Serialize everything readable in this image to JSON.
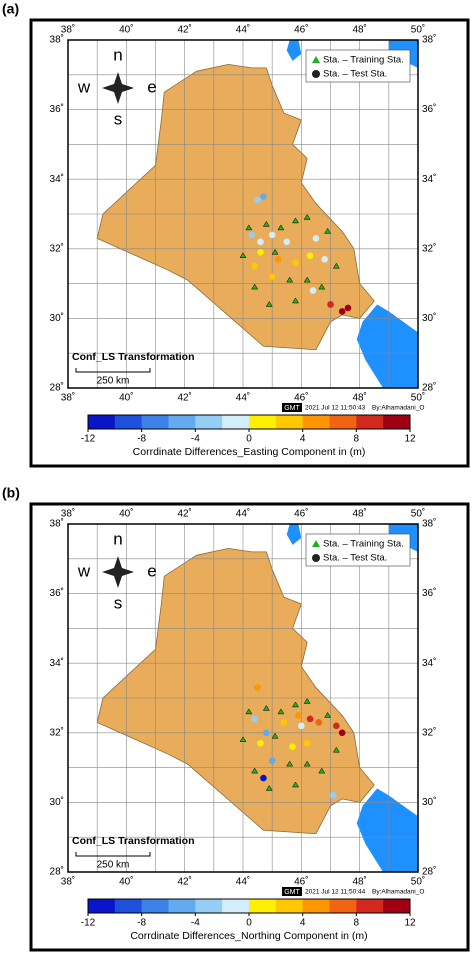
{
  "panels": [
    {
      "label": "(a)",
      "map": {
        "xlim": [
          38,
          50
        ],
        "ylim": [
          28,
          38
        ],
        "xticks": [
          {
            "value": 38,
            "label": "38˚"
          },
          {
            "value": 40,
            "label": "40˚"
          },
          {
            "value": 42,
            "label": "42˚"
          },
          {
            "value": 44,
            "label": "44˚"
          },
          {
            "value": 46,
            "label": "46˚"
          },
          {
            "value": 48,
            "label": "48˚"
          },
          {
            "value": 50,
            "label": "50˚"
          }
        ],
        "yticks": [
          {
            "value": 28,
            "label": "28˚"
          },
          {
            "value": 30,
            "label": "30˚"
          },
          {
            "value": 32,
            "label": "32˚"
          },
          {
            "value": 34,
            "label": "34˚"
          },
          {
            "value": 36,
            "label": "36˚"
          },
          {
            "value": 38,
            "label": "38˚"
          }
        ],
        "compass": {
          "n": "n",
          "w": "w",
          "e": "e",
          "s": "s"
        },
        "legend": [
          "Sta. – Training Sta.",
          "Sta. – Test Sta."
        ],
        "annotation": "Conf_LS Transformation",
        "scale": "250 km",
        "gmt": "GMT",
        "stamp": "2021 Jul 12 11:50:43",
        "author": "By:Alhamadani_O",
        "test_stations": {
          "lon": [
            44.7,
            44.5,
            44.3,
            44.6,
            45.0,
            45.5,
            46.5,
            44.6,
            45.2,
            45.8,
            46.3,
            46.8,
            45.0,
            46.4,
            47.0,
            47.4,
            47.6,
            44.4
          ],
          "lat": [
            33.5,
            33.4,
            32.4,
            32.2,
            32.4,
            32.2,
            32.3,
            31.9,
            31.7,
            31.6,
            31.8,
            31.7,
            31.2,
            30.8,
            30.4,
            30.2,
            30.3,
            31.5
          ],
          "values": [
            -5,
            -4,
            -3,
            -2,
            -2,
            -1,
            -2,
            1,
            4,
            3,
            0,
            -1,
            3,
            -2,
            9,
            10,
            11,
            3
          ]
        },
        "training_stations": {
          "lon": [
            44.2,
            44.8,
            45.3,
            45.8,
            46.2,
            46.9,
            45.1,
            45.6,
            46.2,
            46.7,
            44.4,
            44.9,
            45.8,
            47.2,
            44.0
          ],
          "lat": [
            32.6,
            32.7,
            32.6,
            32.8,
            32.9,
            32.5,
            31.9,
            31.1,
            31.1,
            30.9,
            30.9,
            30.4,
            30.5,
            31.5,
            31.8
          ]
        }
      },
      "colorbar": {
        "clim": [
          -12,
          12
        ],
        "ticks": [
          -12,
          -8,
          -4,
          0,
          4,
          8,
          12
        ],
        "colors": [
          "#0a14c8",
          "#1e50dc",
          "#3c82e6",
          "#64aaf0",
          "#96cdf5",
          "#d2eefa",
          "#fff000",
          "#ffc800",
          "#ff9600",
          "#f06414",
          "#d2281e",
          "#a00014"
        ],
        "label": "Corrdinate Differences_Easting Component in (m)"
      }
    },
    {
      "label": "(b)",
      "map": {
        "xlim": [
          38,
          50
        ],
        "ylim": [
          28,
          38
        ],
        "xticks": [
          {
            "value": 38,
            "label": "38˚"
          },
          {
            "value": 40,
            "label": "40˚"
          },
          {
            "value": 42,
            "label": "42˚"
          },
          {
            "value": 44,
            "label": "44˚"
          },
          {
            "value": 46,
            "label": "46˚"
          },
          {
            "value": 48,
            "label": "48˚"
          },
          {
            "value": 50,
            "label": "50˚"
          }
        ],
        "yticks": [
          {
            "value": 28,
            "label": "28˚"
          },
          {
            "value": 30,
            "label": "30˚"
          },
          {
            "value": 32,
            "label": "32˚"
          },
          {
            "value": 34,
            "label": "34˚"
          },
          {
            "value": 36,
            "label": "36˚"
          },
          {
            "value": 38,
            "label": "38˚"
          }
        ],
        "compass": {
          "n": "n",
          "w": "w",
          "e": "e",
          "s": "s"
        },
        "legend": [
          "Sta. – Training Sta.",
          "Sta. – Test Sta."
        ],
        "annotation": "Conf_LS Transformation",
        "scale": "250 km",
        "gmt": "GMT",
        "stamp": "2021 Jul 12 11:50:44",
        "author": "By:Alhamadani_O",
        "test_stations": {
          "lon": [
            44.5,
            44.4,
            44.8,
            45.4,
            45.9,
            46.3,
            46.6,
            47.2,
            47.4,
            45.0,
            44.7,
            45.7,
            46.2,
            47.1,
            44.6,
            46.0
          ],
          "lat": [
            33.3,
            32.4,
            32.0,
            32.3,
            32.5,
            32.4,
            32.3,
            32.2,
            32.0,
            31.2,
            30.7,
            31.6,
            31.7,
            30.2,
            31.7,
            32.2
          ],
          "values": [
            5,
            -3,
            -6,
            2,
            5,
            8,
            7,
            9,
            11,
            -5,
            -11,
            1,
            3,
            -4,
            1,
            -1
          ]
        },
        "training_stations": {
          "lon": [
            44.2,
            44.8,
            45.3,
            45.8,
            46.2,
            46.9,
            45.1,
            45.6,
            46.2,
            46.7,
            44.4,
            44.9,
            45.8,
            47.2,
            44.0
          ],
          "lat": [
            32.6,
            32.7,
            32.6,
            32.8,
            32.9,
            32.5,
            31.9,
            31.1,
            31.1,
            30.9,
            30.9,
            30.4,
            30.5,
            31.5,
            31.8
          ]
        }
      },
      "colorbar": {
        "clim": [
          -12,
          12
        ],
        "ticks": [
          -12,
          -8,
          -4,
          0,
          4,
          8,
          12
        ],
        "colors": [
          "#0a14c8",
          "#1e50dc",
          "#3c82e6",
          "#64aaf0",
          "#96cdf5",
          "#d2eefa",
          "#fff000",
          "#ffc800",
          "#ff9600",
          "#f06414",
          "#d2281e",
          "#a00014"
        ],
        "label": "Corrdinate Differences_Northing Component in (m)"
      }
    }
  ]
}
